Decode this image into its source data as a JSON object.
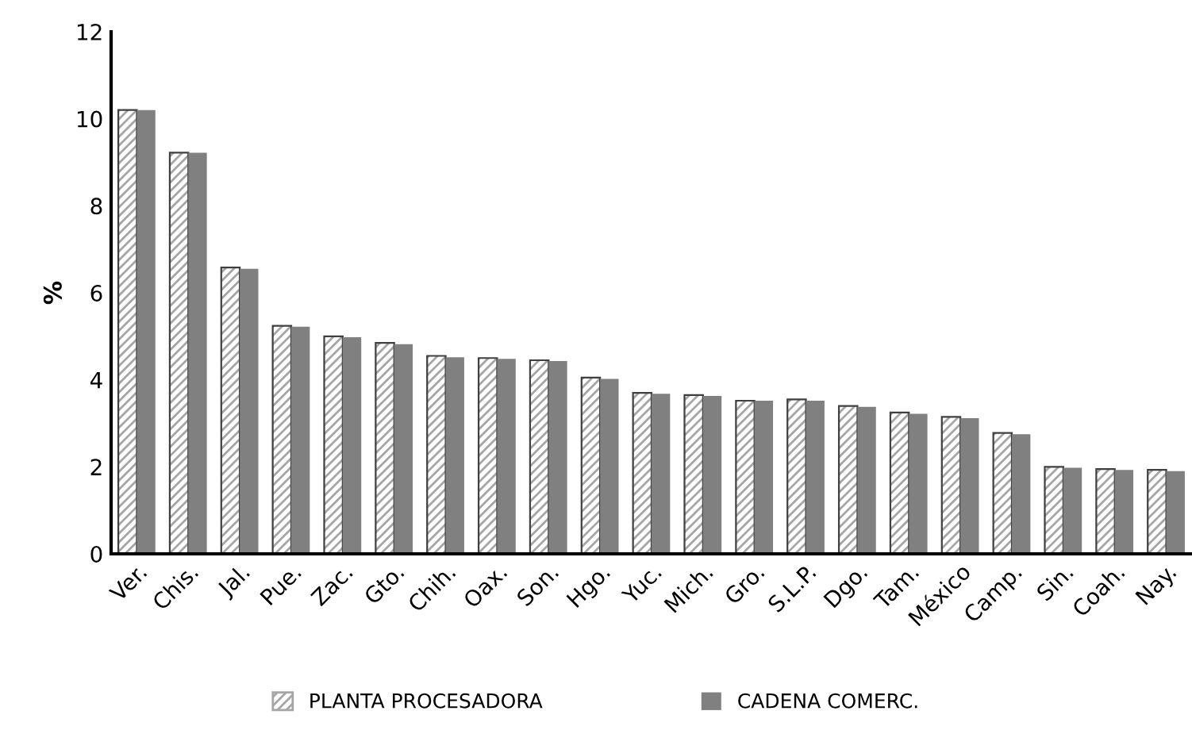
{
  "chart_data": {
    "type": "bar",
    "ylabel": "%",
    "categories": [
      "Ver.",
      "Chis.",
      "Jal.",
      "Pue.",
      "Zac.",
      "Gto.",
      "Chih.",
      "Oax.",
      "Son.",
      "Hgo.",
      "Yuc.",
      "Mich.",
      "Gro.",
      "S.L.P.",
      "Dgo.",
      "Tam.",
      "México",
      "Camp.",
      "Sin.",
      "Coah.",
      "Nay."
    ],
    "series": [
      {
        "name": "PLANTA PROCESADORA",
        "color": "#a6a6a6",
        "values": [
          10.2,
          9.22,
          6.58,
          5.24,
          5.0,
          4.85,
          4.55,
          4.5,
          4.45,
          4.05,
          3.7,
          3.65,
          3.52,
          3.55,
          3.4,
          3.25,
          3.15,
          2.78,
          2.0,
          1.95,
          1.93
        ]
      },
      {
        "name": "CADENA COMERC.",
        "color": "#808080",
        "values": [
          10.2,
          9.22,
          6.55,
          5.22,
          4.98,
          4.82,
          4.52,
          4.48,
          4.43,
          4.02,
          3.68,
          3.63,
          3.52,
          3.52,
          3.38,
          3.22,
          3.12,
          2.75,
          1.98,
          1.93,
          1.9
        ]
      }
    ],
    "ylim": [
      0,
      12
    ],
    "yticks": [
      0,
      2,
      4,
      6,
      8,
      10,
      12
    ],
    "grid": false,
    "legend": "bottom"
  }
}
